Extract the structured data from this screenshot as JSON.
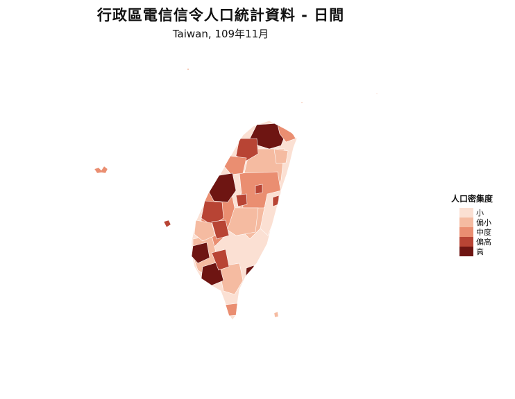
{
  "title": "行政區電信信令人口統計資料 - 日間",
  "subtitle": "Taiwan, 109年11月",
  "legend": {
    "title": "人口密集度",
    "items": [
      {
        "label": "小",
        "color": "#fbe0d3"
      },
      {
        "label": "偏小",
        "color": "#f5bba1"
      },
      {
        "label": "中度",
        "color": "#ea8e71"
      },
      {
        "label": "偏高",
        "color": "#b84434"
      },
      {
        "label": "高",
        "color": "#6e1512"
      }
    ]
  },
  "colors": {
    "background": "#ffffff",
    "district_border": "#ffffff"
  }
}
